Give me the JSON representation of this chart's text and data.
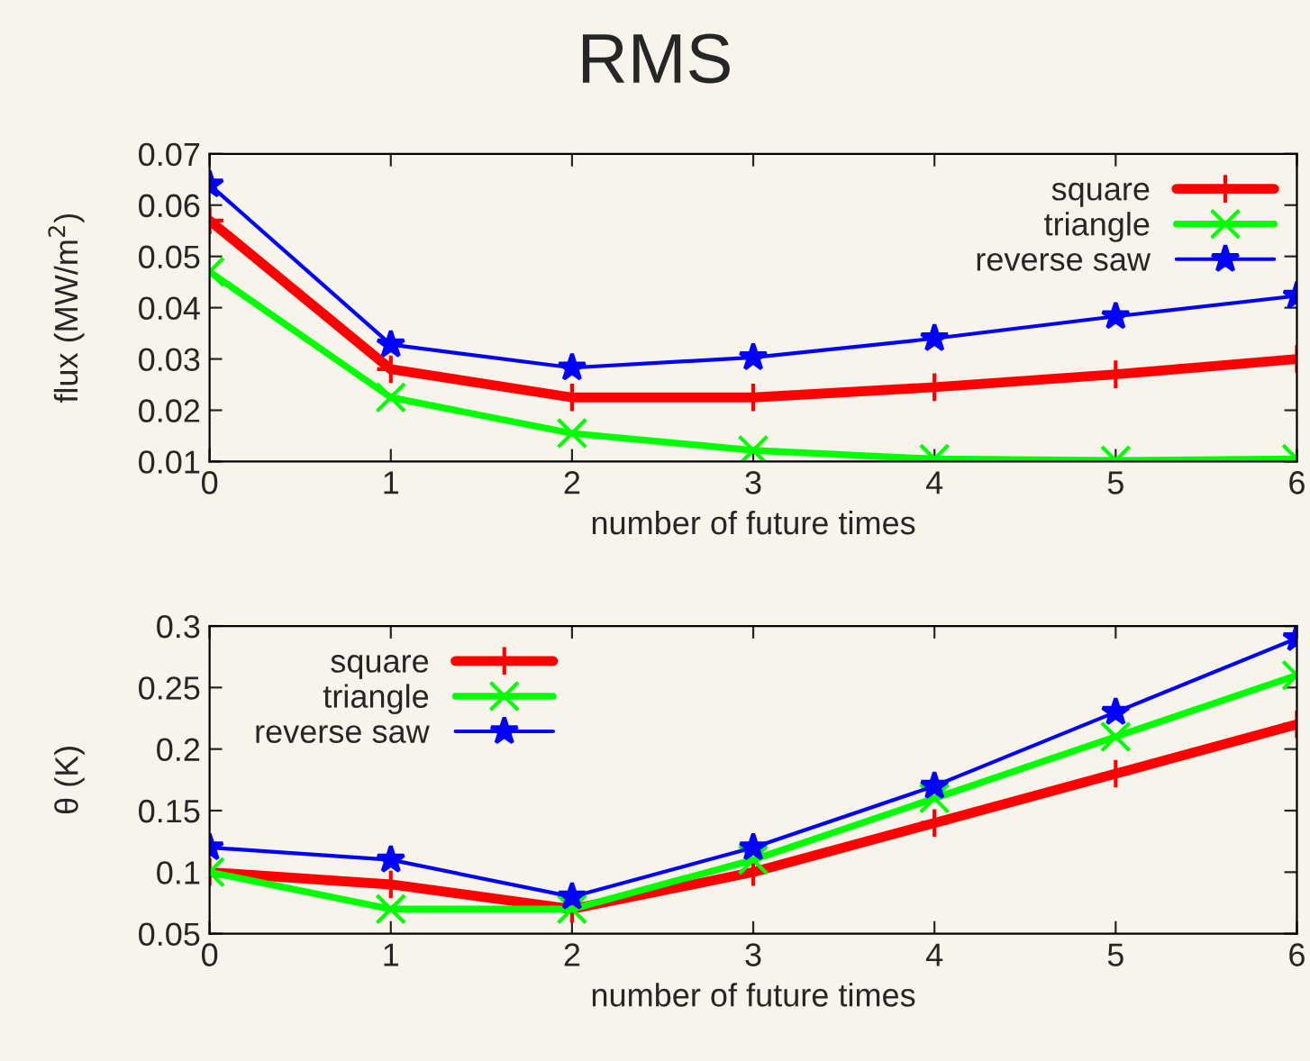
{
  "chart_data": [
    {
      "type": "line",
      "title": "RMS",
      "xlabel": "number of future times",
      "ylabel": "flux (MW/m$^{2}$)",
      "x": [
        0,
        1,
        2,
        3,
        4,
        5,
        6
      ],
      "xlim": [
        0,
        6
      ],
      "xticks": [
        0,
        1,
        2,
        3,
        4,
        5,
        6
      ],
      "ylim": [
        0.01,
        0.07
      ],
      "yticks": [
        0.01,
        0.02,
        0.03,
        0.04,
        0.05,
        0.06,
        0.07
      ],
      "grid": false,
      "legend": "top right",
      "series": [
        {
          "name": "square",
          "color": "#ff0000",
          "marker": "plus",
          "values": [
            0.057,
            0.028,
            0.0225,
            0.0225,
            0.0245,
            0.027,
            0.03
          ]
        },
        {
          "name": "triangle",
          "color": "#00ff00",
          "marker": "cross",
          "values": [
            0.047,
            0.0225,
            0.0155,
            0.0122,
            0.0105,
            0.0102,
            0.0105
          ]
        },
        {
          "name": "reverse saw",
          "color": "#0000ff",
          "marker": "star",
          "values": [
            0.064,
            0.0328,
            0.0283,
            0.0303,
            0.034,
            0.0383,
            0.0423
          ]
        }
      ]
    },
    {
      "type": "line",
      "xlabel": "number of future times",
      "ylabel": "θ (K)",
      "x": [
        0,
        1,
        2,
        3,
        4,
        5,
        6
      ],
      "xlim": [
        0,
        6
      ],
      "xticks": [
        0,
        1,
        2,
        3,
        4,
        5,
        6
      ],
      "ylim": [
        0.05,
        0.3
      ],
      "yticks": [
        0.05,
        0.1,
        0.15,
        0.2,
        0.25,
        0.3
      ],
      "grid": false,
      "legend": "top left",
      "series": [
        {
          "name": "square",
          "color": "#ff0000",
          "marker": "plus",
          "values": [
            0.1,
            0.09,
            0.07,
            0.1,
            0.14,
            0.18,
            0.22
          ]
        },
        {
          "name": "triangle",
          "color": "#00ff00",
          "marker": "cross",
          "values": [
            0.1,
            0.07,
            0.07,
            0.11,
            0.16,
            0.21,
            0.26
          ]
        },
        {
          "name": "reverse saw",
          "color": "#0000ff",
          "marker": "star",
          "values": [
            0.12,
            0.11,
            0.08,
            0.12,
            0.17,
            0.23,
            0.29
          ]
        }
      ]
    }
  ]
}
